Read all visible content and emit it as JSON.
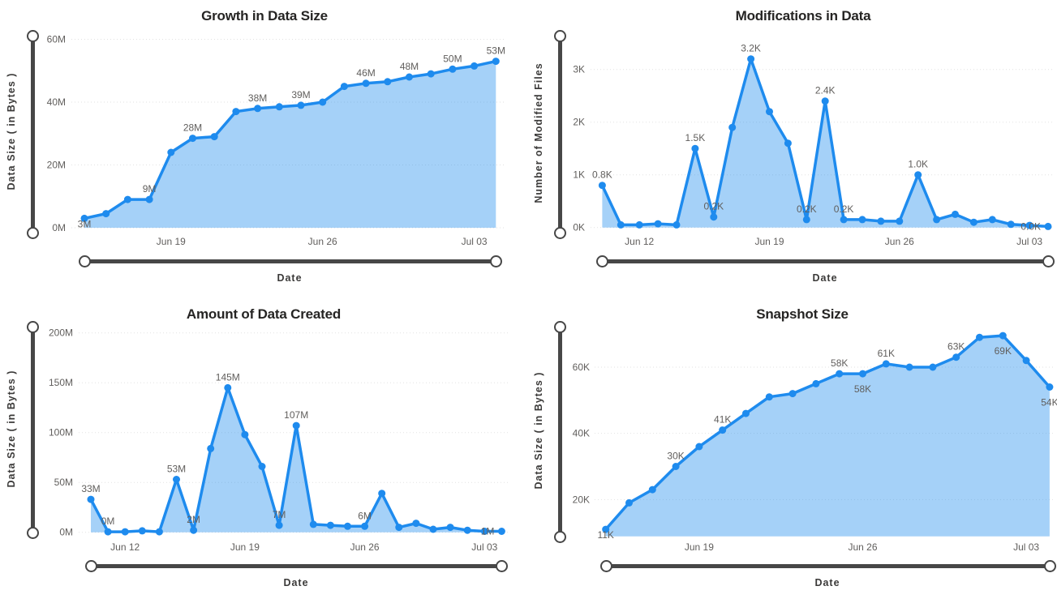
{
  "colors": {
    "line": "#1e8bee",
    "fill_opacity": 0.4,
    "gridline": "#e2e2e2",
    "tick_label": "#605e5c",
    "data_label": "#605e5c",
    "title": "#252423",
    "axis_title": "#3b3a39",
    "slider": "#474747"
  },
  "chart_data": [
    {
      "type": "area",
      "title": "Growth in Data Size",
      "xlabel": "Date",
      "ylabel": "Data Size ( in Bytes )",
      "ylim": [
        0,
        62
      ],
      "grid": "dotted",
      "values": [
        3,
        4.5,
        9,
        9,
        24,
        28.5,
        29,
        37,
        38,
        38.5,
        39,
        40,
        45,
        46,
        46.5,
        48,
        49,
        50.5,
        51.5,
        53
      ],
      "yticks": [
        {
          "label": "0M",
          "value": 0
        },
        {
          "label": "20M",
          "value": 20
        },
        {
          "label": "40M",
          "value": 40
        },
        {
          "label": "60M",
          "value": 60
        }
      ],
      "xticks": [
        {
          "label": "Jun 19",
          "index": 4
        },
        {
          "label": "Jun 26",
          "index": 11
        },
        {
          "label": "Jul 03",
          "index": 18
        }
      ],
      "point_labels": [
        {
          "index": 0,
          "text": "3M",
          "pos": "near-below"
        },
        {
          "index": 3,
          "text": "9M",
          "pos": "above"
        },
        {
          "index": 5,
          "text": "28M",
          "pos": "above"
        },
        {
          "index": 8,
          "text": "38M",
          "pos": "above"
        },
        {
          "index": 10,
          "text": "39M",
          "pos": "above"
        },
        {
          "index": 13,
          "text": "46M",
          "pos": "above"
        },
        {
          "index": 15,
          "text": "48M",
          "pos": "above"
        },
        {
          "index": 17,
          "text": "50M",
          "pos": "above"
        },
        {
          "index": 19,
          "text": "53M",
          "pos": "above"
        }
      ]
    },
    {
      "type": "area",
      "title": "Modifications in Data",
      "xlabel": "Date",
      "ylabel": "Number of Modified Files",
      "ylim": [
        0,
        3.64
      ],
      "grid": "dotted",
      "values": [
        0.8,
        0.05,
        0.05,
        0.07,
        0.05,
        1.5,
        0.2,
        1.9,
        3.2,
        2.2,
        1.6,
        0.15,
        2.4,
        0.15,
        0.15,
        0.12,
        0.12,
        1.0,
        0.15,
        0.25,
        0.1,
        0.15,
        0.06,
        0.04,
        0.02
      ],
      "yticks": [
        {
          "label": "0K",
          "value": 0
        },
        {
          "label": "1K",
          "value": 1
        },
        {
          "label": "2K",
          "value": 2
        },
        {
          "label": "3K",
          "value": 3
        }
      ],
      "xticks": [
        {
          "label": "Jun 12",
          "index": 2
        },
        {
          "label": "Jun 19",
          "index": 9
        },
        {
          "label": "Jun 26",
          "index": 16
        },
        {
          "label": "Jul 03",
          "index": 23
        }
      ],
      "point_labels": [
        {
          "index": 0,
          "text": "0.8K",
          "pos": "above"
        },
        {
          "index": 5,
          "text": "1.5K",
          "pos": "above"
        },
        {
          "index": 6,
          "text": "0.2K",
          "pos": "above"
        },
        {
          "index": 8,
          "text": "3.2K",
          "pos": "above"
        },
        {
          "index": 11,
          "text": "0.2K",
          "pos": "above"
        },
        {
          "index": 12,
          "text": "2.4K",
          "pos": "above"
        },
        {
          "index": 13,
          "text": "0.2K",
          "pos": "above"
        },
        {
          "index": 17,
          "text": "1.0K",
          "pos": "above"
        },
        {
          "index": 24,
          "text": "0.0K",
          "pos": "left"
        }
      ]
    },
    {
      "type": "area",
      "title": "Amount of Data Created",
      "xlabel": "Date",
      "ylabel": "Data Size ( in Bytes )",
      "ylim": [
        0,
        206
      ],
      "grid": "dotted",
      "values": [
        33,
        0.5,
        0.5,
        1.5,
        0.5,
        53,
        2,
        84,
        145,
        98,
        66,
        7,
        107,
        8,
        7,
        6,
        6,
        39,
        5,
        9,
        3,
        5,
        2,
        1,
        1
      ],
      "yticks": [
        {
          "label": "0M",
          "value": 0
        },
        {
          "label": "50M",
          "value": 50
        },
        {
          "label": "100M",
          "value": 100
        },
        {
          "label": "150M",
          "value": 150
        },
        {
          "label": "200M",
          "value": 200
        }
      ],
      "xticks": [
        {
          "label": "Jun 12",
          "index": 2
        },
        {
          "label": "Jun 19",
          "index": 9
        },
        {
          "label": "Jun 26",
          "index": 16
        },
        {
          "label": "Jul 03",
          "index": 23
        }
      ],
      "point_labels": [
        {
          "index": 0,
          "text": "33M",
          "pos": "above"
        },
        {
          "index": 1,
          "text": "0M",
          "pos": "above"
        },
        {
          "index": 5,
          "text": "53M",
          "pos": "above"
        },
        {
          "index": 6,
          "text": "2M",
          "pos": "above"
        },
        {
          "index": 8,
          "text": "145M",
          "pos": "above"
        },
        {
          "index": 11,
          "text": "7M",
          "pos": "above"
        },
        {
          "index": 12,
          "text": "107M",
          "pos": "above"
        },
        {
          "index": 16,
          "text": "6M",
          "pos": "above"
        },
        {
          "index": 24,
          "text": "1M",
          "pos": "left"
        }
      ]
    },
    {
      "type": "area",
      "title": "Snapshot Size",
      "xlabel": "Date",
      "ylabel": "Data Size ( in Bytes )",
      "ylim": [
        8.9,
        72
      ],
      "grid": "dotted",
      "values": [
        11,
        19,
        23,
        30,
        36,
        41,
        46,
        51,
        52,
        55,
        58,
        58,
        61,
        60,
        60,
        63,
        69,
        69.5,
        62,
        54
      ],
      "yticks": [
        {
          "label": "20K",
          "value": 20
        },
        {
          "label": "40K",
          "value": 40
        },
        {
          "label": "60K",
          "value": 60
        }
      ],
      "xticks": [
        {
          "label": "Jun 19",
          "index": 4
        },
        {
          "label": "Jun 26",
          "index": 11
        },
        {
          "label": "Jul 03",
          "index": 18
        }
      ],
      "point_labels": [
        {
          "index": 0,
          "text": "11K",
          "pos": "near-below"
        },
        {
          "index": 3,
          "text": "30K",
          "pos": "above"
        },
        {
          "index": 5,
          "text": "41K",
          "pos": "above"
        },
        {
          "index": 10,
          "text": "58K",
          "pos": "above"
        },
        {
          "index": 11,
          "text": "58K",
          "pos": "below"
        },
        {
          "index": 12,
          "text": "61K",
          "pos": "above"
        },
        {
          "index": 15,
          "text": "63K",
          "pos": "above"
        },
        {
          "index": 17,
          "text": "69K",
          "pos": "below"
        },
        {
          "index": 19,
          "text": "54K",
          "pos": "below"
        }
      ]
    }
  ]
}
